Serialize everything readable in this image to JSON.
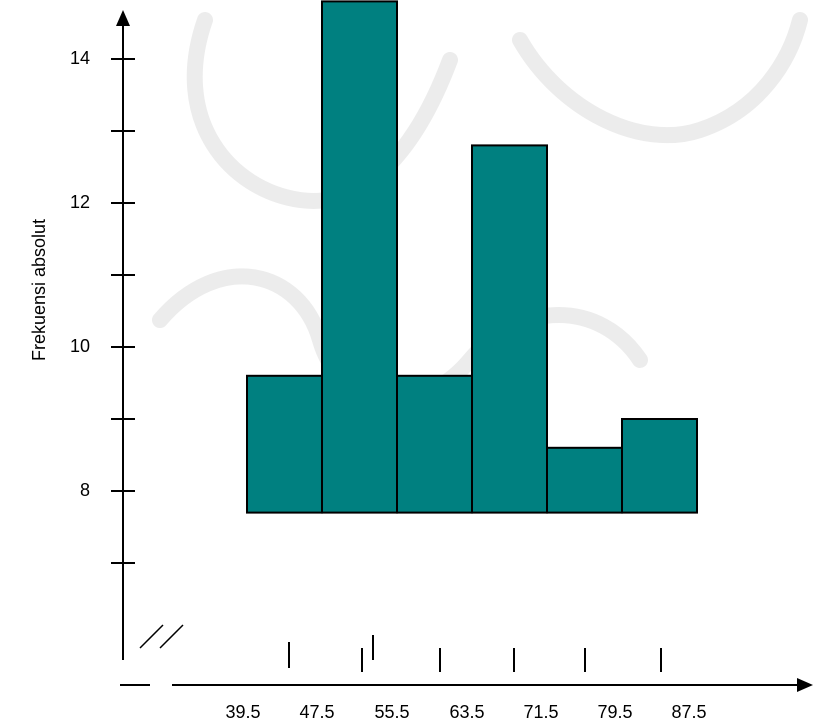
{
  "chart_data": {
    "type": "bar",
    "xlabel": "",
    "ylabel": "Frekuensi absolut",
    "x_tick_labels": [
      "39.5",
      "47.5",
      "55.5",
      "63.5",
      "71.5",
      "79.5",
      "87.5"
    ],
    "y_tick_labels": [
      "8",
      "10",
      "12",
      "14"
    ],
    "categories": [
      "39.5-47.5",
      "47.5-55.5",
      "55.5-63.5",
      "63.5-71.5",
      "71.5-79.5",
      "79.5-87.5"
    ],
    "values": [
      9.6,
      14.8,
      9.6,
      12.8,
      8.6,
      9.0
    ],
    "ylim": [
      7.7,
      15
    ],
    "grid": false,
    "axis_break": true,
    "bar_color": "#008080",
    "edge_color": "#000000"
  }
}
